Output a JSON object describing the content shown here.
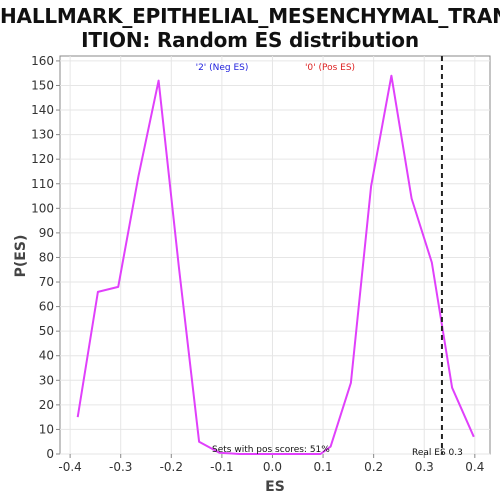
{
  "chart_data": {
    "type": "line",
    "title_line1": "HALLMARK_EPITHELIAL_MESENCHYMAL_TRANS",
    "title_line2": "ITION: Random ES distribution",
    "xlabel": "ES",
    "ylabel": "P(ES)",
    "xlim": [
      -0.42,
      0.43
    ],
    "ylim": [
      0,
      162
    ],
    "xticks": [
      "-0.4",
      "-0.3",
      "-0.2",
      "-0.1",
      "0.0",
      "0.1",
      "0.2",
      "0.3",
      "0.4"
    ],
    "xtick_values": [
      -0.4,
      -0.3,
      -0.2,
      -0.1,
      0.0,
      0.1,
      0.2,
      0.3,
      0.4
    ],
    "yticks": [
      "0",
      "10",
      "20",
      "30",
      "40",
      "50",
      "60",
      "70",
      "80",
      "90",
      "100",
      "110",
      "120",
      "130",
      "140",
      "150",
      "160"
    ],
    "ytick_values": [
      0,
      10,
      20,
      30,
      40,
      50,
      60,
      70,
      80,
      90,
      100,
      110,
      120,
      130,
      140,
      150,
      160
    ],
    "grid": true,
    "line_color": "#e040fb",
    "series": [
      {
        "x": [
          -0.385,
          -0.345,
          -0.305,
          -0.265,
          -0.225,
          -0.185,
          -0.145,
          -0.105,
          -0.065,
          -0.025,
          0.015,
          0.055,
          0.095,
          0.115,
          0.155,
          0.195,
          0.235,
          0.275,
          0.315,
          0.355,
          0.398
        ],
        "y": [
          15,
          66,
          68,
          113,
          152,
          76,
          5,
          0.5,
          0,
          0,
          0,
          0,
          0,
          3,
          29,
          109,
          154,
          104,
          78,
          27,
          7
        ]
      }
    ],
    "annotations": {
      "neg_label": "'2' (Neg ES)",
      "pos_label": "'0' (Pos ES)",
      "neg_color": "#2222dd",
      "pos_color": "#dd2222",
      "pos_scores_text": "Sets with pos scores: 51%",
      "real_es_text": "Real ES 0.3",
      "real_es_value": 0.335
    }
  }
}
